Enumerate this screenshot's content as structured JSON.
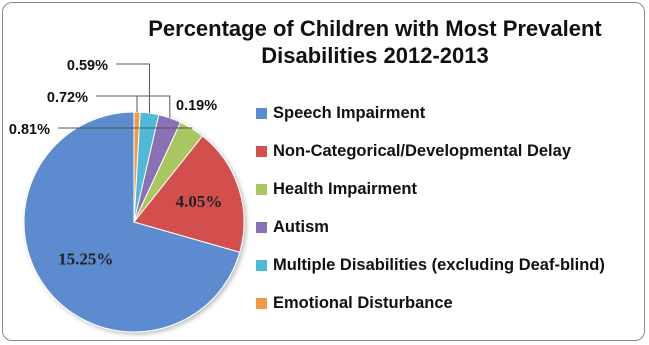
{
  "chart_data": {
    "type": "pie",
    "title": "Percentage of Children with Most Prevalent Disabilities 2012-2013",
    "title_lines": [
      "Percentage of Children with Most Prevalent",
      "Disabilities 2012-2013"
    ],
    "legend_position": "right",
    "categories": [
      "Speech Impairment",
      "Non-Categorical/Developmental Delay",
      "Health Impairment",
      "Autism",
      "Multiple Disabilities (excluding Deaf-blind)",
      "Emotional Disturbance"
    ],
    "values": [
      15.25,
      4.05,
      0.81,
      0.72,
      0.59,
      0.19
    ],
    "labels": [
      "15.25%",
      "4.05%",
      "0.81%",
      "0.72%",
      "0.59%",
      "0.19%"
    ],
    "colors": [
      "#5B8BD0",
      "#D2504D",
      "#A8C760",
      "#8C6FB5",
      "#4FB9D8",
      "#F09A45"
    ]
  }
}
